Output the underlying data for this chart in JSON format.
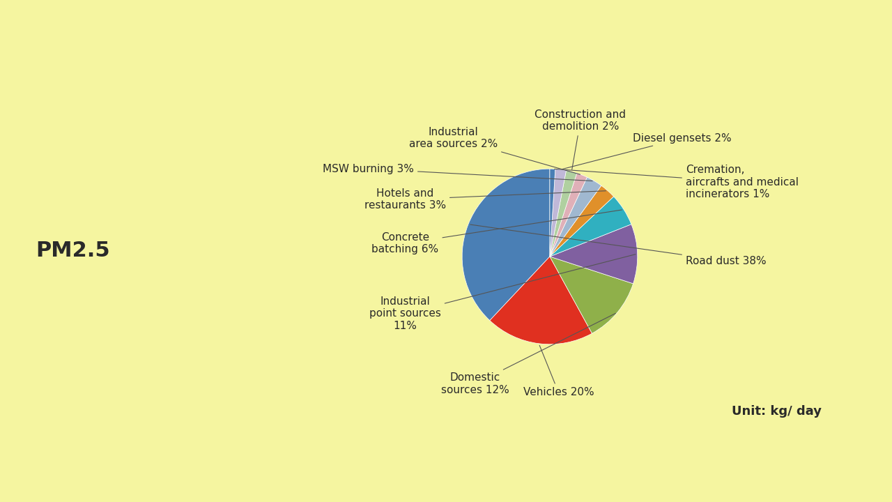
{
  "title": "PM2.5",
  "background_color": "#f5f5a0",
  "unit_text": "Unit: kg/ day",
  "slices": [
    {
      "label": "Road dust 38%",
      "value": 38,
      "color": "#4a7fb5"
    },
    {
      "label": "Vehicles 20%",
      "value": 20,
      "color": "#e03020"
    },
    {
      "label": "Domestic\nsources 12%",
      "value": 12,
      "color": "#8fb04a"
    },
    {
      "label": "Industrial\npoint sources\n11%",
      "value": 11,
      "color": "#8060a0"
    },
    {
      "label": "Concrete\nbatching 6%",
      "value": 6,
      "color": "#30b0c0"
    },
    {
      "label": "Hotels and\nrestaurants 3%",
      "value": 3,
      "color": "#e0902a"
    },
    {
      "label": "MSW burning 3%",
      "value": 3,
      "color": "#a0b8d0"
    },
    {
      "label": "Industrial\narea sources 2%",
      "value": 2,
      "color": "#e0b0b8"
    },
    {
      "label": "Construction and\ndemolition 2%",
      "value": 2,
      "color": "#b0d0a0"
    },
    {
      "label": "Diesel gensets 2%",
      "value": 2,
      "color": "#c0b8d8"
    },
    {
      "label": "Cremation,\naircrafts and medical\nincinerators 1%",
      "value": 1,
      "color": "#4a7fb5"
    }
  ],
  "startangle": 90,
  "label_fontsize": 11,
  "title_fontsize": 22
}
